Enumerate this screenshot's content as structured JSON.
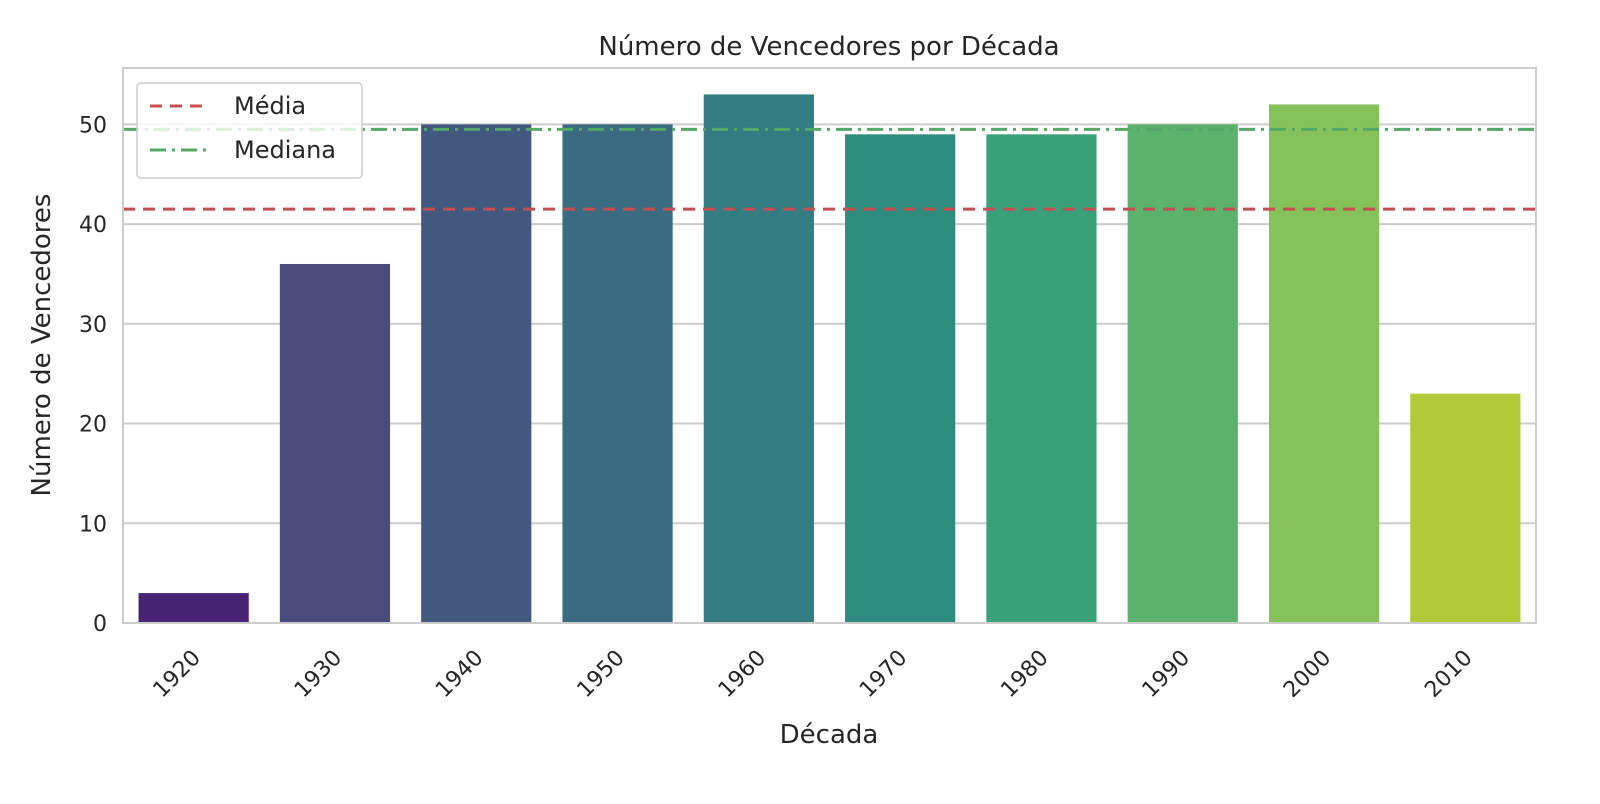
{
  "chart_data": {
    "type": "bar",
    "title": "Número de Vencedores por Década",
    "xlabel": "Década",
    "ylabel": "Número de Vencedores",
    "categories": [
      "1920",
      "1930",
      "1940",
      "1950",
      "1960",
      "1970",
      "1980",
      "1990",
      "2000",
      "2010"
    ],
    "values": [
      3,
      36,
      50,
      50,
      53,
      49,
      49,
      50,
      52,
      23
    ],
    "ylim": [
      0,
      55.65
    ],
    "yticks": [
      0,
      10,
      20,
      30,
      40,
      50
    ],
    "grid": "horizontal",
    "legend_placement": "top-left",
    "bar_colors": [
      "#482374",
      "#4a4a7c",
      "#43587f",
      "#3a6b81",
      "#337c81",
      "#2d8c7e",
      "#3aa07a",
      "#5bb26c",
      "#86c25a",
      "#b2c938"
    ],
    "reference_lines": [
      {
        "name": "Média",
        "value": 41.5,
        "color": "#c44e52",
        "style": "dashed"
      },
      {
        "name": "Mediana",
        "value": 49.5,
        "color": "#55a868",
        "style": "dashdot"
      }
    ]
  }
}
